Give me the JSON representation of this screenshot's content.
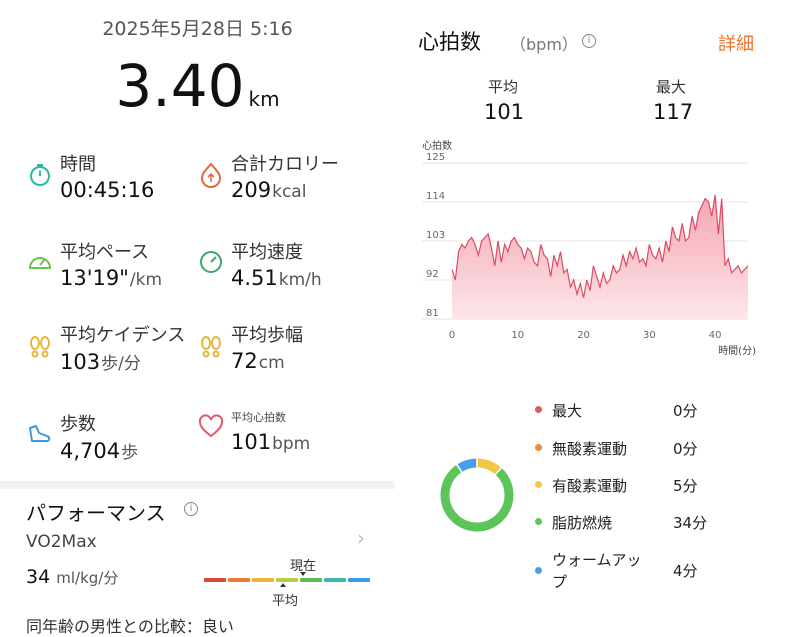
{
  "header": {
    "datetime": "2025年5月28日 5:16",
    "distance": "3.40",
    "distance_unit": "km"
  },
  "stats": [
    {
      "icon": "stopwatch-icon",
      "label": "時間",
      "value": "00:45:16",
      "unit": ""
    },
    {
      "icon": "calorie-flame-icon",
      "label": "合計カロリー",
      "value": "209",
      "unit": "kcal"
    },
    {
      "icon": "pace-gauge-icon",
      "label": "平均ペース",
      "value": "13'19\"",
      "unit": "/km"
    },
    {
      "icon": "speed-gauge-icon",
      "label": "平均速度",
      "value": "4.51",
      "unit": "km/h"
    },
    {
      "icon": "footprints-icon",
      "label": "平均ケイデンス",
      "value": "103",
      "unit": "歩/分"
    },
    {
      "icon": "footprints-icon",
      "label": "平均歩幅",
      "value": "72",
      "unit": "cm"
    },
    {
      "icon": "shoe-icon",
      "label": "歩数",
      "value": "4,704",
      "unit": "歩"
    },
    {
      "icon": "heart-icon",
      "label": "平均心拍数",
      "value": "101",
      "unit": "bpm"
    }
  ],
  "performance": {
    "title": "パフォーマンス",
    "info": "i",
    "metric": "VO2Max",
    "value": "34",
    "unit": "ml/kg/分",
    "now_label": "現在",
    "avg_label": "平均",
    "compare": "同年齢の男性との比較：良い",
    "chevron": "›",
    "scale_colors": [
      "#e0443a",
      "#ec7a30",
      "#f2b233",
      "#b7cf3e",
      "#5cbb55",
      "#3fb6a8",
      "#3a9be0"
    ]
  },
  "heart_rate": {
    "title": "心拍数",
    "unit": "（bpm）",
    "info": "i",
    "detail_link": "詳細",
    "avg_label": "平均",
    "avg_value": "101",
    "max_label": "最大",
    "max_value": "117"
  },
  "chart_data": {
    "type": "area",
    "ylabel": "心拍数",
    "xlabel": "時間(分)",
    "yticks": [
      125,
      114,
      103,
      92,
      81
    ],
    "xticks": [
      0,
      10,
      20,
      30,
      40
    ],
    "ylim": [
      81,
      125
    ],
    "xlim": [
      0,
      45
    ],
    "x": [
      0,
      0.5,
      1,
      1.5,
      2,
      2.5,
      3,
      3.5,
      4,
      4.5,
      5,
      5.5,
      6,
      6.5,
      7,
      7.5,
      8,
      8.5,
      9,
      9.5,
      10,
      10.5,
      11,
      11.5,
      12,
      12.5,
      13,
      13.5,
      14,
      14.5,
      15,
      15.5,
      16,
      16.5,
      17,
      17.5,
      18,
      18.5,
      19,
      19.5,
      20,
      20.5,
      21,
      21.5,
      22,
      22.5,
      23,
      23.5,
      24,
      24.5,
      25,
      25.5,
      26,
      26.5,
      27,
      27.5,
      28,
      28.5,
      29,
      29.5,
      30,
      30.5,
      31,
      31.5,
      32,
      32.5,
      33,
      33.5,
      34,
      34.5,
      35,
      35.5,
      36,
      36.5,
      37,
      37.5,
      38,
      38.5,
      39,
      39.5,
      40,
      40.5,
      41,
      41.5,
      42,
      42.5,
      43,
      43.5,
      44,
      44.5,
      45
    ],
    "y": [
      95,
      92,
      100,
      102,
      101,
      103,
      104,
      102,
      99,
      103,
      104,
      105,
      101,
      96,
      103,
      97,
      102,
      100,
      103,
      104,
      102,
      101,
      98,
      101,
      100,
      97,
      96,
      102,
      99,
      98,
      93,
      99,
      96,
      100,
      94,
      95,
      90,
      92,
      88,
      91,
      87,
      92,
      89,
      96,
      93,
      90,
      94,
      91,
      92,
      96,
      94,
      95,
      99,
      96,
      100,
      98,
      101,
      97,
      98,
      96,
      102,
      99,
      98,
      101,
      97,
      103,
      100,
      107,
      104,
      103,
      108,
      103,
      104,
      110,
      106,
      111,
      113,
      115,
      114,
      110,
      116,
      105,
      115,
      96,
      98,
      94,
      95,
      96,
      94,
      95,
      96
    ],
    "fill_top": "#f6a4b2",
    "fill_bottom": "#fde6ea",
    "line_color": "#de4a63"
  },
  "zones": [
    {
      "name": "最大",
      "time": "0分",
      "minutes": 0,
      "color": "#e05a5a"
    },
    {
      "name": "無酸素運動",
      "time": "0分",
      "minutes": 0,
      "color": "#ef8a3c"
    },
    {
      "name": "有酸素運動",
      "time": "5分",
      "minutes": 5,
      "color": "#f2c744"
    },
    {
      "name": "脂肪燃焼",
      "time": "34分",
      "minutes": 34,
      "color": "#5cc45a"
    },
    {
      "name": "ウォームアップ",
      "time": "4分",
      "minutes": 4,
      "color": "#4a9ee8"
    }
  ]
}
